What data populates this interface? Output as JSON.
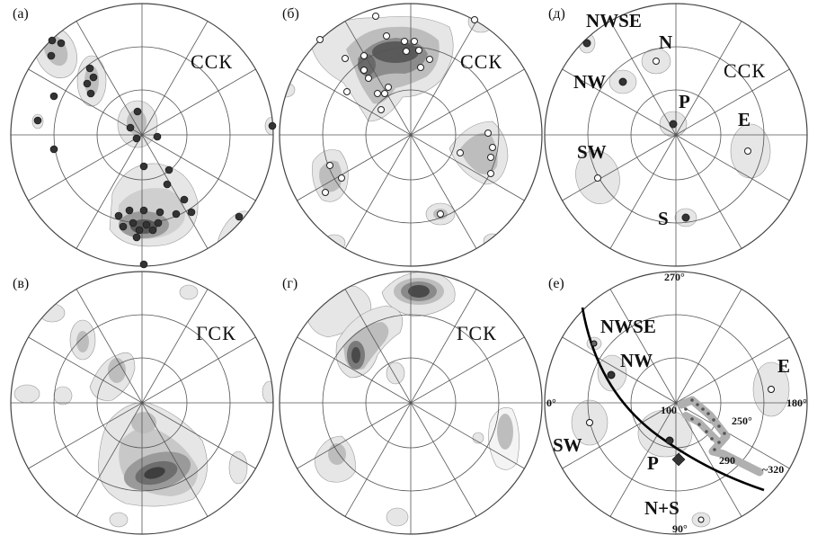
{
  "panels": [
    {
      "id": "a",
      "label": "(а)",
      "system": "ССК"
    },
    {
      "id": "b",
      "label": "(б)",
      "system": "ССК"
    },
    {
      "id": "d",
      "label": "(д)",
      "system": "ССК"
    },
    {
      "id": "v",
      "label": "(в)",
      "system": "ГСК"
    },
    {
      "id": "g",
      "label": "(г)",
      "system": "ГСК"
    },
    {
      "id": "e",
      "label": "(е)",
      "system": ""
    }
  ],
  "panel_d_labels": {
    "nwse": "NWSE",
    "n": "N",
    "nw": "NW",
    "p": "P",
    "e": "E",
    "sw": "SW",
    "s": "S"
  },
  "panel_e_labels": {
    "deg_top": "270°",
    "deg_left": "0°",
    "deg_right": "180°",
    "deg_bottom": "90°",
    "nwse": "NWSE",
    "nw": "NW",
    "e": "E",
    "sw": "SW",
    "p": "P",
    "ns": "N+S",
    "t100": "100",
    "t250": "250°",
    "t290": "290",
    "t320": "~320"
  },
  "colors": {
    "contour_light": "#e6e6e6",
    "contour_mid": "#bdbdbd",
    "contour_dark": "#5a5a5a",
    "point_black": "#333333",
    "point_white": "#ffffff",
    "great_circle": "#000000",
    "path_gray": "#b0b0b0"
  }
}
